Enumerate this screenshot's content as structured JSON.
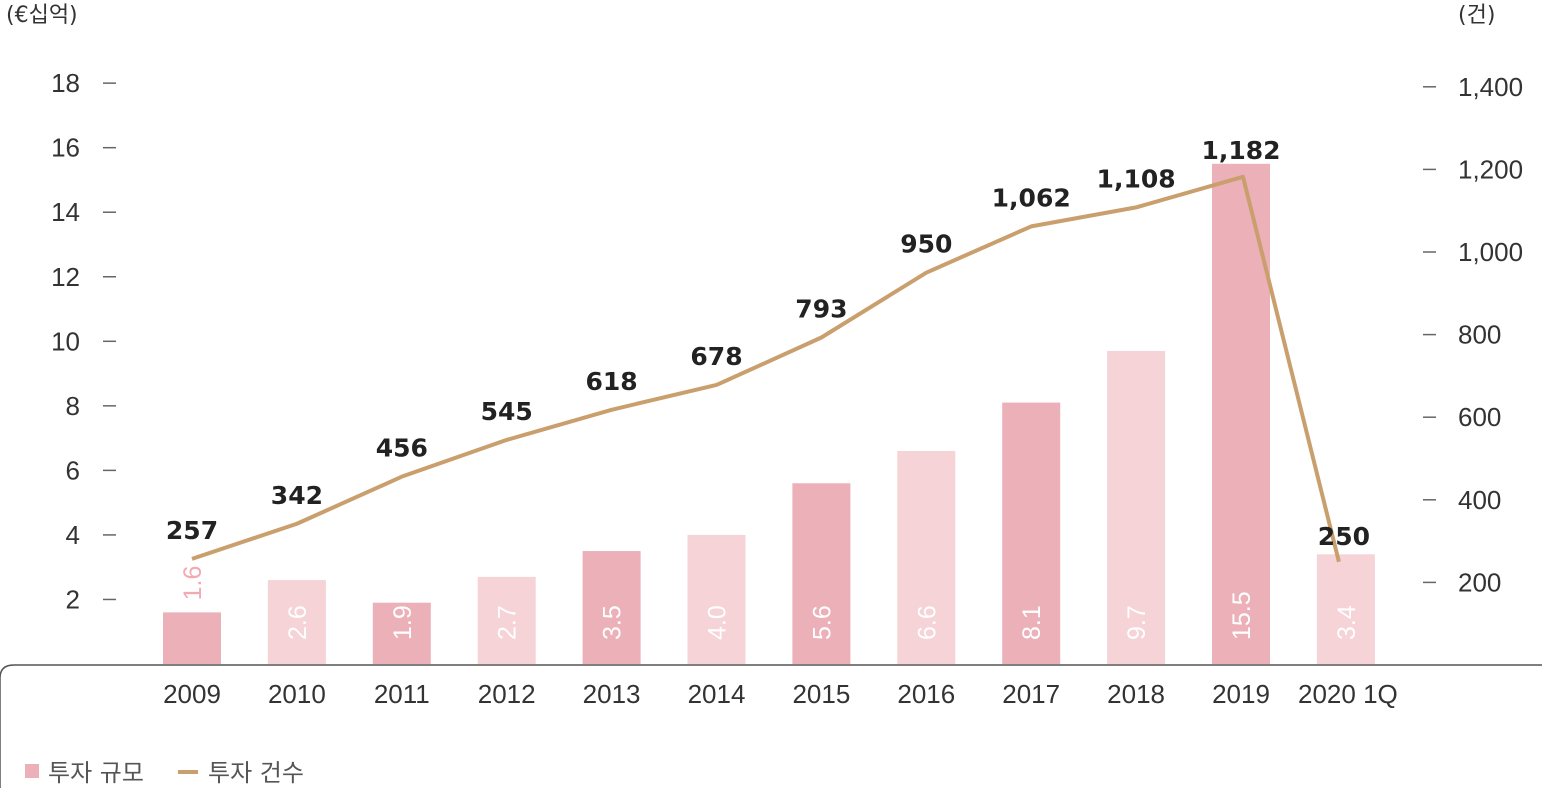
{
  "chart_data": {
    "type": "bar+line",
    "categories": [
      "2009",
      "2010",
      "2011",
      "2012",
      "2013",
      "2014",
      "2015",
      "2016",
      "2017",
      "2018",
      "2019",
      "2020 1Q"
    ],
    "series": [
      {
        "name": "투자 규모",
        "type": "bar",
        "axis": "left",
        "values": [
          1.6,
          2.6,
          1.9,
          2.7,
          3.5,
          4.0,
          5.6,
          6.6,
          8.1,
          9.7,
          15.5,
          3.4
        ],
        "labels": [
          "1.6",
          "2.6",
          "1.9",
          "2.7",
          "3.5",
          "4.0",
          "5.6",
          "6.6",
          "8.1",
          "9.7",
          "15.5",
          "3.4"
        ]
      },
      {
        "name": "투자 건수",
        "type": "line",
        "axis": "right",
        "values": [
          257,
          342,
          456,
          545,
          618,
          678,
          793,
          950,
          1062,
          1108,
          1182,
          250
        ],
        "labels": [
          "257",
          "342",
          "456",
          "545",
          "618",
          "678",
          "793",
          "950",
          "1,062",
          "1,108",
          "1,182",
          "250"
        ]
      }
    ],
    "y_left": {
      "unit": "(€십억)",
      "ticks": [
        "2",
        "4",
        "6",
        "8",
        "10",
        "12",
        "14",
        "16",
        "18"
      ],
      "ylim": [
        0,
        18
      ]
    },
    "y_right": {
      "unit": "(건)",
      "ticks": [
        "200",
        "400",
        "600",
        "800",
        "1,000",
        "1,200",
        "1,400"
      ],
      "ylim": [
        0,
        1400
      ]
    },
    "colors": {
      "bar_dark": "#ebb0b8",
      "bar_light": "#f5d3d7",
      "line": "#c9a06d",
      "label_dark": "#ffffff",
      "label_light": "#f3a9b3"
    },
    "legend": {
      "position": "bottom-left",
      "items": [
        "투자 규모",
        "투자 건수"
      ]
    },
    "grid": false
  }
}
